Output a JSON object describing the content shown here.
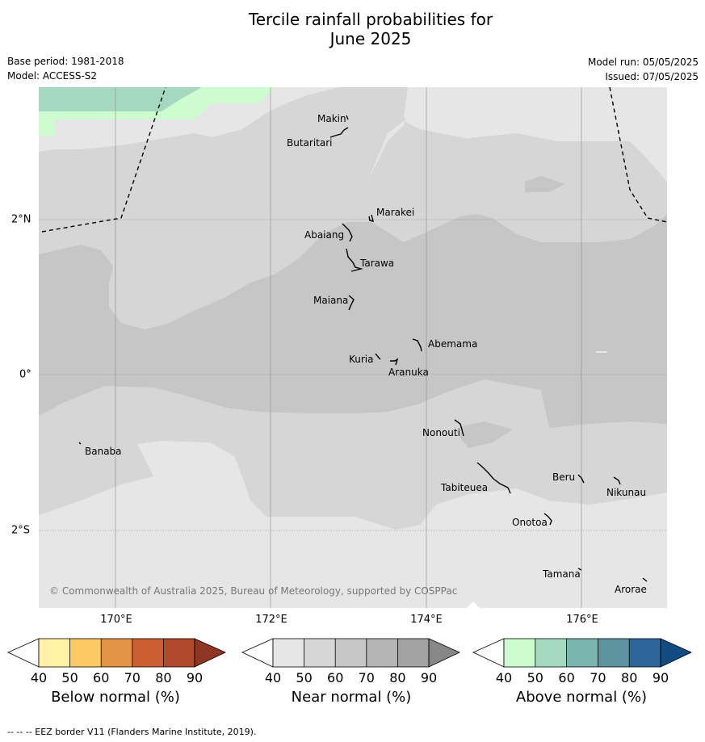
{
  "title": {
    "line1": "Tercile rainfall probabilities for",
    "line2": "June 2025"
  },
  "meta": {
    "base_period": "Base period: 1981-2018",
    "model": "Model: ACCESS-S2",
    "model_run": "Model run: 05/05/2025",
    "issued": "Issued: 07/05/2025"
  },
  "map": {
    "lon_labels": [
      "170°E",
      "172°E",
      "174°E",
      "176°E"
    ],
    "lat_labels": [
      "2°N",
      "0°",
      "2°S"
    ],
    "copyright": "© Commonwealth of Australia 2025, Bureau of Meteorology, supported by COSPPac",
    "islands": [
      "Makin",
      "Butaritari",
      "Marakei",
      "Abaiang",
      "Tarawa",
      "Maiana",
      "Abemama",
      "Kuria",
      "Aranuka",
      "Banaba",
      "Nonouti",
      "Beru",
      "Nikunau",
      "Tabiteuea",
      "Onotoa",
      "Tamana",
      "Arorae"
    ]
  },
  "colorbars": [
    {
      "name": "below",
      "label": "Below normal (%)",
      "ticks": [
        "40",
        "50",
        "60",
        "70",
        "80",
        "90"
      ],
      "colors": [
        "#fff1a6",
        "#fdc962",
        "#e39346",
        "#cb5e32",
        "#b04a2a",
        "#8e3523"
      ]
    },
    {
      "name": "near",
      "label": "Near normal (%)",
      "ticks": [
        "40",
        "50",
        "60",
        "70",
        "80",
        "90"
      ],
      "colors": [
        "#e6e6e6",
        "#d6d6d6",
        "#c6c6c6",
        "#b4b4b4",
        "#a2a2a2",
        "#878787"
      ]
    },
    {
      "name": "above",
      "label": "Above normal (%)",
      "ticks": [
        "40",
        "50",
        "60",
        "70",
        "80",
        "90"
      ],
      "colors": [
        "#ccfccf",
        "#a4d9bf",
        "#7ab6b0",
        "#5d939e",
        "#2e6598",
        "#124b82"
      ]
    }
  ],
  "footnote": "--  --  -- EEZ border V11 (Flanders Marine Institute, 2019).",
  "colors": {
    "near_40": "#e6e6e6",
    "near_50": "#d6d6d6",
    "near_60": "#c6c6c6",
    "above_40": "#ccfccf",
    "above_50": "#a4d9bf"
  }
}
